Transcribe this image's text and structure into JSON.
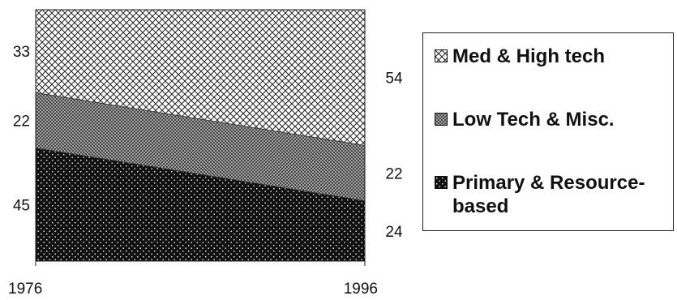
{
  "chart_data": {
    "type": "area",
    "stacked": true,
    "x": [
      "1976",
      "1996"
    ],
    "series": [
      {
        "name": "Primary & Resource-based",
        "values": [
          45,
          24
        ],
        "pattern": "black-with-white-dots"
      },
      {
        "name": "Low Tech & Misc.",
        "values": [
          22,
          22
        ],
        "pattern": "dense-hatch"
      },
      {
        "name": "Med & High tech",
        "values": [
          33,
          54
        ],
        "pattern": "crosshatch"
      }
    ],
    "ylim": [
      0,
      100
    ],
    "grid": false,
    "legend_position": "right"
  }
}
